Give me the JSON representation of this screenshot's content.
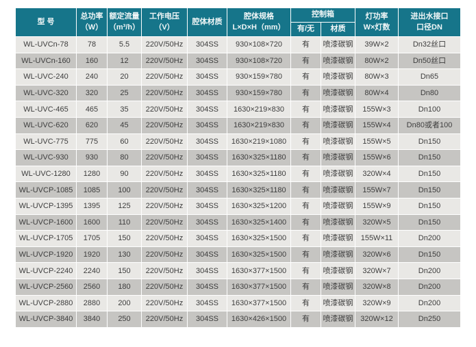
{
  "colors": {
    "header_bg": "#16758a",
    "header_text": "#f0f6f7",
    "row_light": "#e9e8e5",
    "row_dark": "#c6c5c2",
    "body_text": "#3d3d3d",
    "page_bg": "#ffffff"
  },
  "table": {
    "columns": [
      {
        "id": "model",
        "lines": [
          "型 号"
        ]
      },
      {
        "id": "total_power",
        "lines": [
          "总功率",
          "（W）"
        ]
      },
      {
        "id": "rated_flow",
        "lines": [
          "额定流量",
          "（m³/h）"
        ]
      },
      {
        "id": "voltage",
        "lines": [
          "工作电压",
          "（V）"
        ]
      },
      {
        "id": "chamber_material",
        "lines": [
          "腔体材质"
        ]
      },
      {
        "id": "chamber_size",
        "lines": [
          "腔体规格",
          "L×D×H（mm）"
        ]
      },
      {
        "id": "control_box",
        "lines": [
          "控制箱"
        ],
        "children": [
          {
            "id": "control_has",
            "lines": [
              "有/无"
            ]
          },
          {
            "id": "control_material",
            "lines": [
              "材质"
            ]
          }
        ]
      },
      {
        "id": "lamp_power",
        "lines": [
          "灯功率",
          "W×灯数"
        ]
      },
      {
        "id": "inlet_outlet",
        "lines": [
          "进出水接口",
          "口径DN"
        ]
      }
    ],
    "cell_ids": [
      "model",
      "total_power",
      "rated_flow",
      "voltage",
      "chamber_material",
      "chamber_size",
      "control_has",
      "control_material",
      "lamp_power",
      "inlet_outlet"
    ],
    "rows": [
      [
        "WL-UVCn-78",
        "78",
        "5.5",
        "220V/50Hz",
        "304SS",
        "930×108×720",
        "有",
        "喷漆碳钢",
        "39W×2",
        "Dn32丝口"
      ],
      [
        "WL-UVCn-160",
        "160",
        "12",
        "220V/50Hz",
        "304SS",
        "930×108×720",
        "有",
        "喷漆碳钢",
        "80W×2",
        "Dn50丝口"
      ],
      [
        "WL-UVC-240",
        "240",
        "20",
        "220V/50Hz",
        "304SS",
        "930×159×780",
        "有",
        "喷漆碳钢",
        "80W×3",
        "Dn65"
      ],
      [
        "WL-UVC-320",
        "320",
        "25",
        "220V/50Hz",
        "304SS",
        "930×159×780",
        "有",
        "喷漆碳钢",
        "80W×4",
        "Dn80"
      ],
      [
        "WL-UVC-465",
        "465",
        "35",
        "220V/50Hz",
        "304SS",
        "1630×219×830",
        "有",
        "喷漆碳钢",
        "155W×3",
        "Dn100"
      ],
      [
        "WL-UVC-620",
        "620",
        "45",
        "220V/50Hz",
        "304SS",
        "1630×219×830",
        "有",
        "喷漆碳钢",
        "155W×4",
        "Dn80或者100"
      ],
      [
        "WL-UVC-775",
        "775",
        "60",
        "220V/50Hz",
        "304SS",
        "1630×219×1080",
        "有",
        "喷漆碳钢",
        "155W×5",
        "Dn150"
      ],
      [
        "WL-UVC-930",
        "930",
        "80",
        "220V/50Hz",
        "304SS",
        "1630×325×1180",
        "有",
        "喷漆碳钢",
        "155W×6",
        "Dn150"
      ],
      [
        "WL-UVC-1280",
        "1280",
        "90",
        "220V/50Hz",
        "304SS",
        "1630×325×1180",
        "有",
        "喷漆碳钢",
        "320W×4",
        "Dn150"
      ],
      [
        "WL-UVCP-1085",
        "1085",
        "100",
        "220V/50Hz",
        "304SS",
        "1630×325×1180",
        "有",
        "喷漆碳钢",
        "155W×7",
        "Dn150"
      ],
      [
        "WL-UVCP-1395",
        "1395",
        "125",
        "220V/50Hz",
        "304SS",
        "1630×325×1200",
        "有",
        "喷漆碳钢",
        "155W×9",
        "Dn150"
      ],
      [
        "WL-UVCP-1600",
        "1600",
        "110",
        "220V/50Hz",
        "304SS",
        "1630×325×1400",
        "有",
        "喷漆碳钢",
        "320W×5",
        "Dn150"
      ],
      [
        "WL-UVCP-1705",
        "1705",
        "150",
        "220V/50Hz",
        "304SS",
        "1630×325×1500",
        "有",
        "喷漆碳钢",
        "155W×11",
        "Dn200"
      ],
      [
        "WL-UVCP-1920",
        "1920",
        "130",
        "220V/50Hz",
        "304SS",
        "1630×325×1500",
        "有",
        "喷漆碳钢",
        "320W×6",
        "Dn150"
      ],
      [
        "WL-UVCP-2240",
        "2240",
        "150",
        "220V/50Hz",
        "304SS",
        "1630×377×1500",
        "有",
        "喷漆碳钢",
        "320W×7",
        "Dn200"
      ],
      [
        "WL-UVCP-2560",
        "2560",
        "180",
        "220V/50Hz",
        "304SS",
        "1630×377×1500",
        "有",
        "喷漆碳钢",
        "320W×8",
        "Dn200"
      ],
      [
        "WL-UVCP-2880",
        "2880",
        "200",
        "220V/50Hz",
        "304SS",
        "1630×377×1500",
        "有",
        "喷漆碳钢",
        "320W×9",
        "Dn200"
      ],
      [
        "WL-UVCP-3840",
        "3840",
        "250",
        "220V/50Hz",
        "304SS",
        "1630×426×1500",
        "有",
        "喷漆碳钢",
        "320W×12",
        "Dn250"
      ]
    ]
  }
}
